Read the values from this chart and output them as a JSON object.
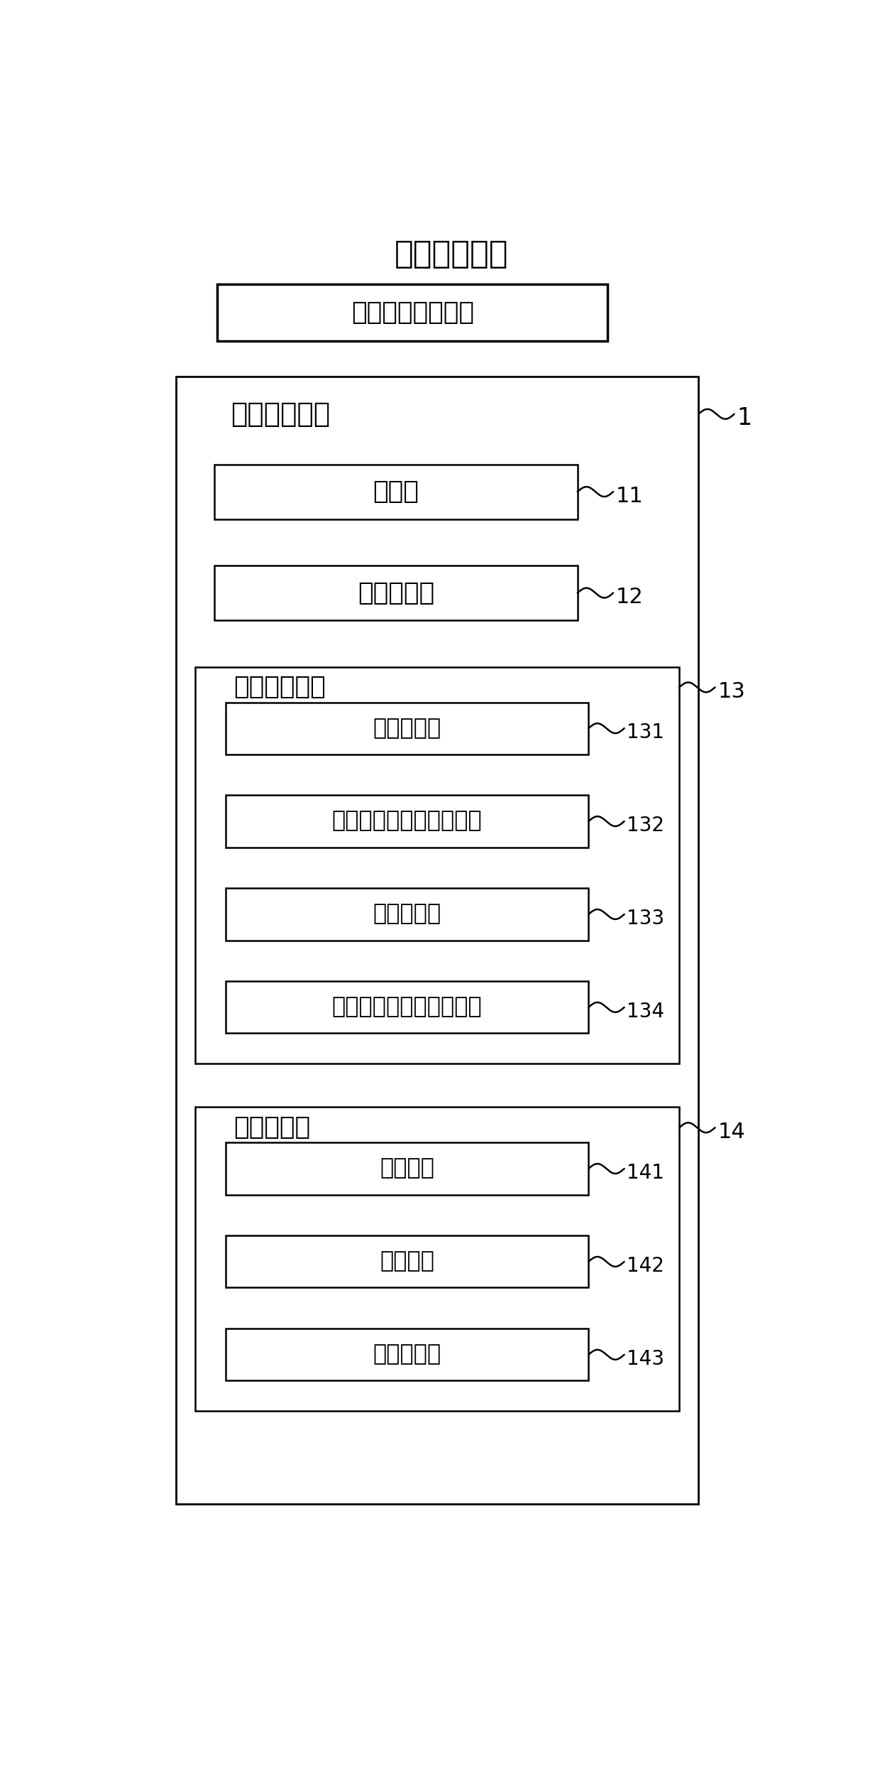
{
  "title": "音乐教学系统",
  "top_box_label": "乐谱播放模块组件",
  "outer_box_label": "打谱操作模块",
  "outer_box_ref": "1",
  "box1_label": "音符库",
  "box1_ref": "11",
  "box2_label": "音符属性库",
  "box2_ref": "12",
  "grp1_label": "曲谱生成单元",
  "grp1_ref": "13",
  "grp1_children": [
    "汉语拼音库",
    "唱词音频文件生成子模块",
    "唱名文件库",
    "唱名音频文件生成子模块"
  ],
  "grp1_refs": [
    "131",
    "132",
    "133",
    "134"
  ],
  "grp2_label": "谱表属性库",
  "grp2_ref": "14",
  "grp2_children": [
    "高音谱库",
    "低音谱库",
    "转换子模块"
  ],
  "grp2_refs": [
    "141",
    "142",
    "143"
  ],
  "bg_color": "#ffffff",
  "text_color": "#000000"
}
